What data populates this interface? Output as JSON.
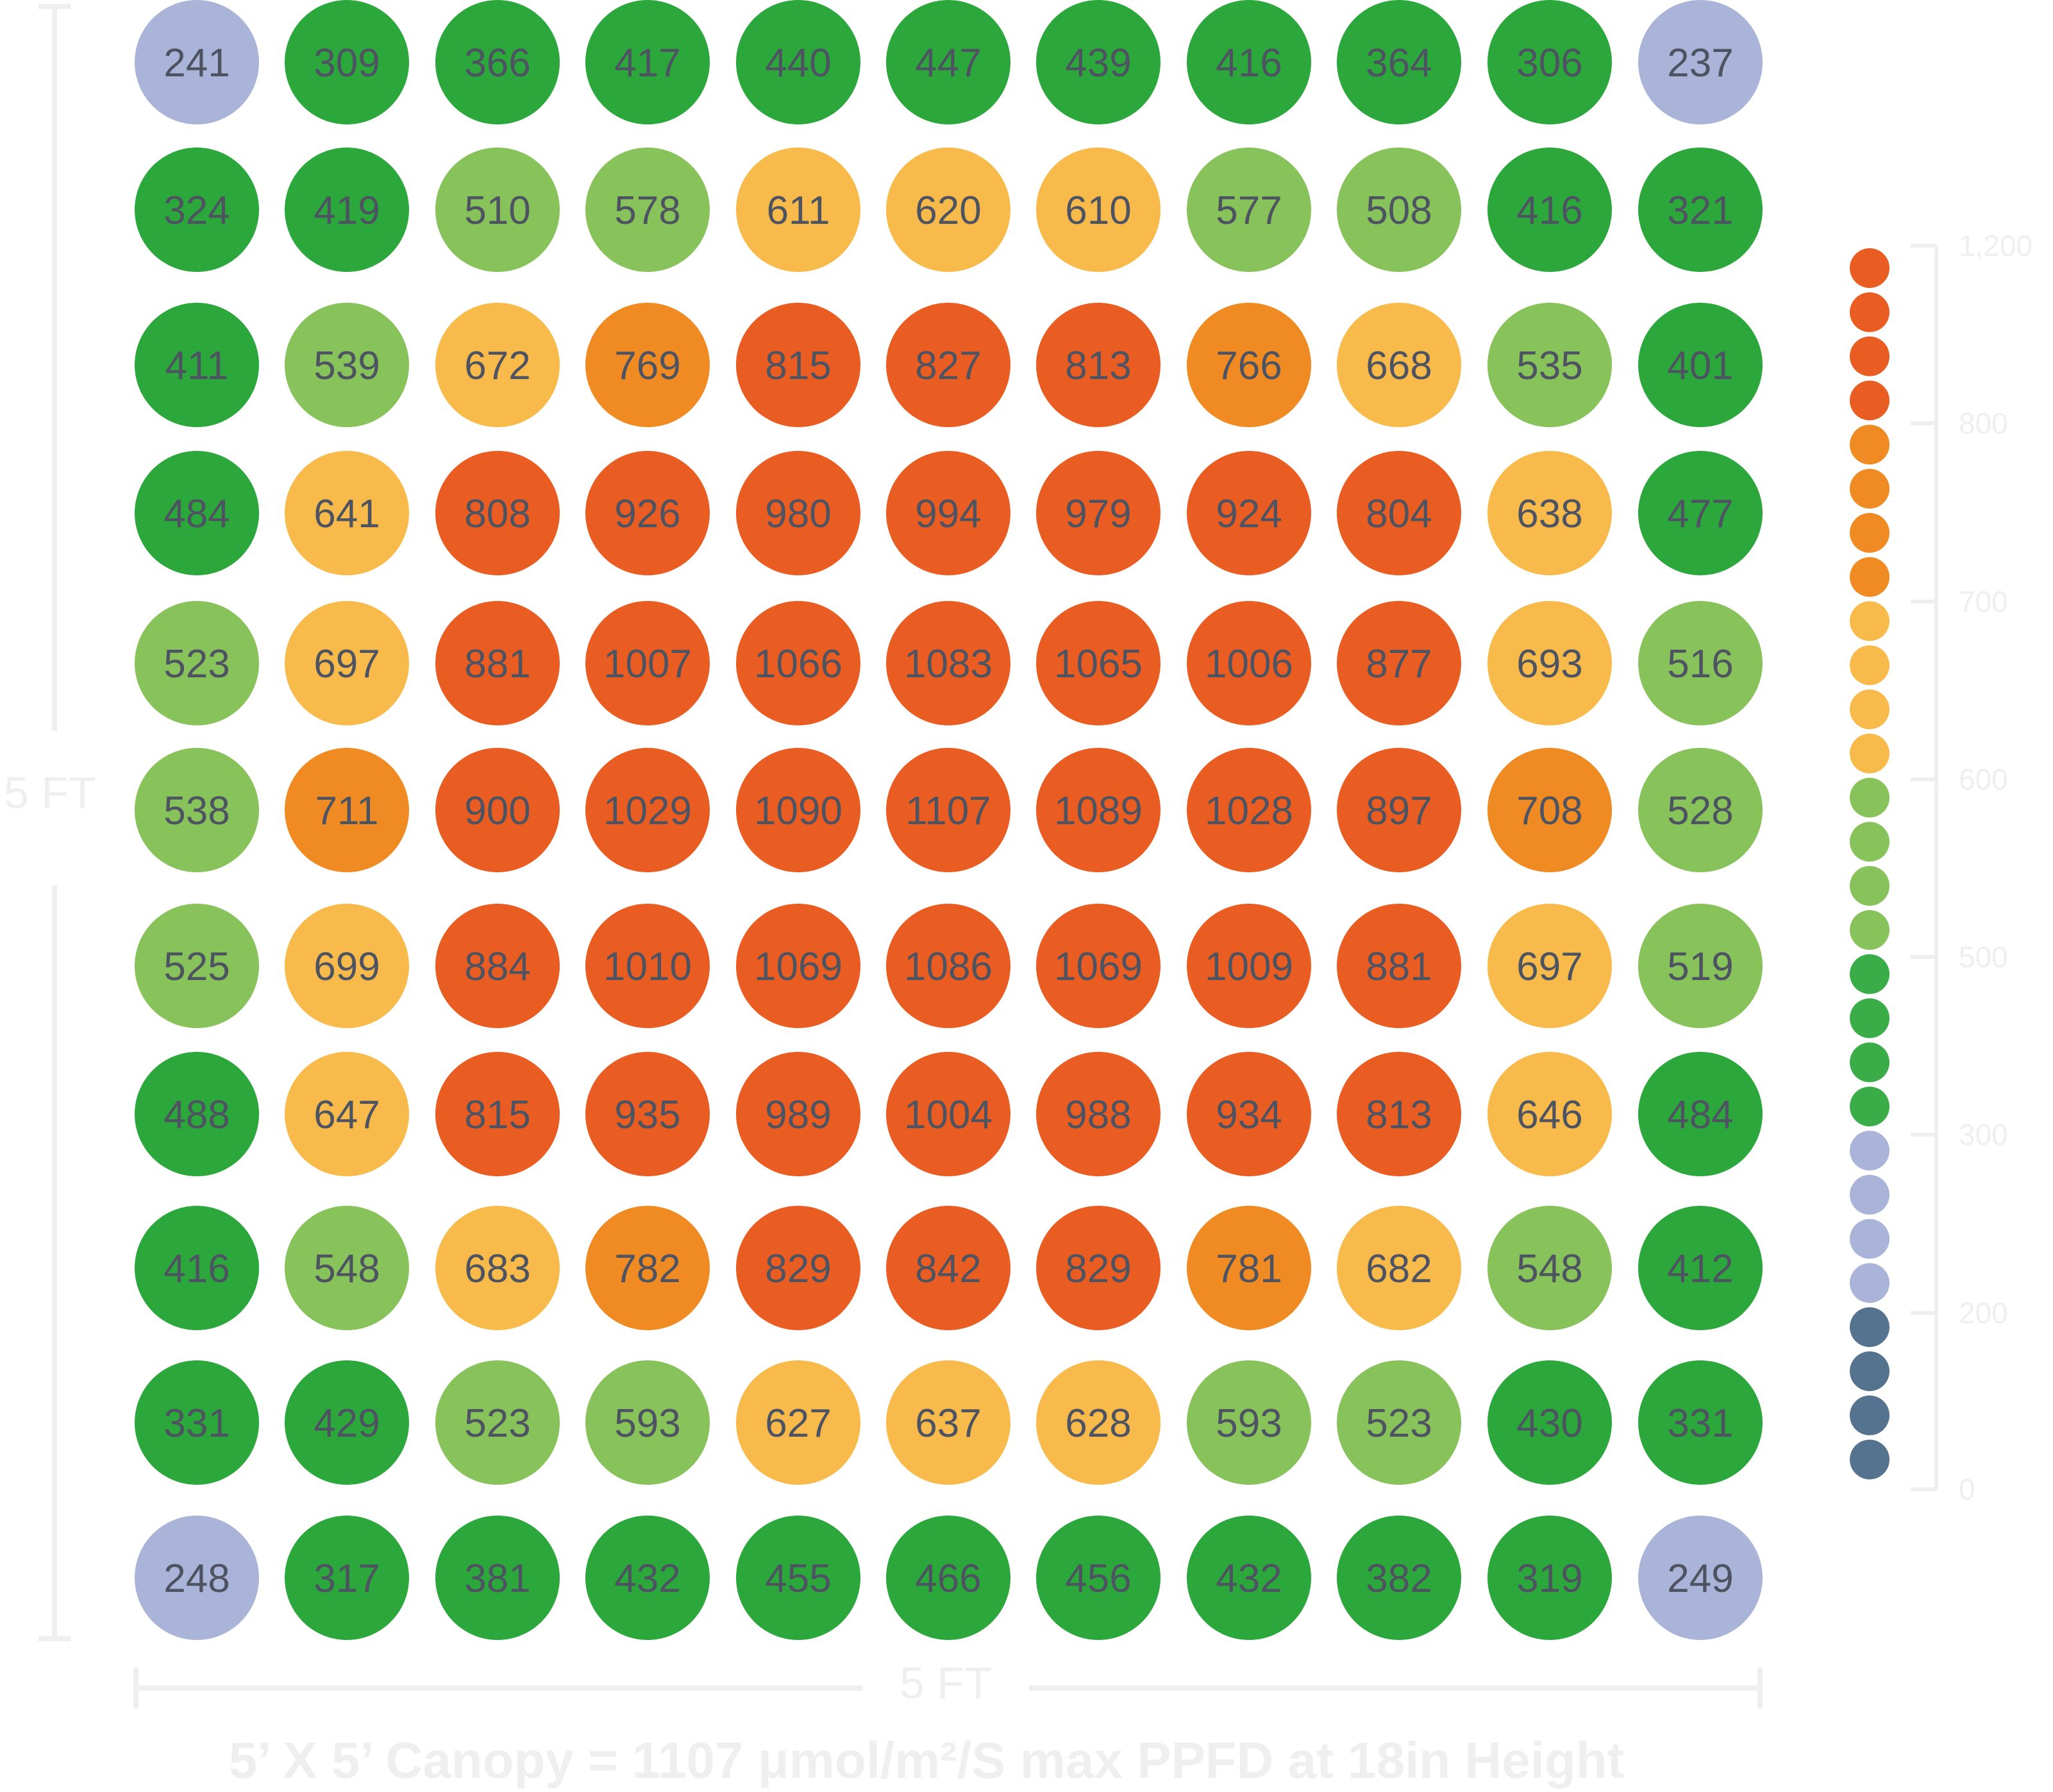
{
  "chart_data": {
    "type": "heatmap",
    "grid": [
      [
        241,
        309,
        366,
        417,
        440,
        447,
        439,
        416,
        364,
        306,
        237
      ],
      [
        324,
        419,
        510,
        578,
        611,
        620,
        610,
        577,
        508,
        416,
        321
      ],
      [
        411,
        539,
        672,
        769,
        815,
        827,
        813,
        766,
        668,
        535,
        401
      ],
      [
        484,
        641,
        808,
        926,
        980,
        994,
        979,
        924,
        804,
        638,
        477
      ],
      [
        523,
        697,
        881,
        1007,
        1066,
        1083,
        1065,
        1006,
        877,
        693,
        516
      ],
      [
        538,
        711,
        900,
        1029,
        1090,
        1107,
        1089,
        1028,
        897,
        708,
        528
      ],
      [
        525,
        699,
        884,
        1010,
        1069,
        1086,
        1069,
        1009,
        881,
        697,
        519
      ],
      [
        488,
        647,
        815,
        935,
        989,
        1004,
        988,
        934,
        813,
        646,
        484
      ],
      [
        416,
        548,
        683,
        782,
        829,
        842,
        829,
        781,
        682,
        548,
        412
      ],
      [
        331,
        429,
        523,
        593,
        627,
        637,
        628,
        593,
        523,
        430,
        331
      ],
      [
        248,
        317,
        381,
        432,
        455,
        466,
        456,
        432,
        382,
        319,
        249
      ]
    ],
    "color_bands": [
      {
        "min": 800,
        "color": "#e95d22"
      },
      {
        "min": 700,
        "color": "#ef8b22"
      },
      {
        "min": 600,
        "color": "#f8ba4a"
      },
      {
        "min": 500,
        "color": "#88c25a"
      },
      {
        "min": 300,
        "color": "#2ca73c"
      },
      {
        "min": 200,
        "color": "#a9b4d8"
      },
      {
        "min": 0,
        "color": "#55728e"
      }
    ],
    "scale": {
      "tick_labels": [
        "1,200",
        "800",
        "700",
        "600",
        "500",
        "300",
        "200",
        "0"
      ],
      "dot_colors": [
        "#e95d22",
        "#e95d22",
        "#e95d22",
        "#e95d22",
        "#ef8b22",
        "#ef8b22",
        "#ef8b22",
        "#ef8b22",
        "#f8ba4a",
        "#f8ba4a",
        "#f8ba4a",
        "#f8ba4a",
        "#88c25a",
        "#88c25a",
        "#88c25a",
        "#88c25a",
        "#3aad48",
        "#3aad48",
        "#3aad48",
        "#3aad48",
        "#a9b4d8",
        "#a9b4d8",
        "#a9b4d8",
        "#a9b4d8",
        "#55728e",
        "#55728e",
        "#55728e",
        "#55728e"
      ]
    },
    "ylabel": "5 FT",
    "xlabel": "5 FT",
    "caption": "5’ X 5’ Canopy = 1107 μmol/m²/S max PPFD at 18in Height"
  }
}
